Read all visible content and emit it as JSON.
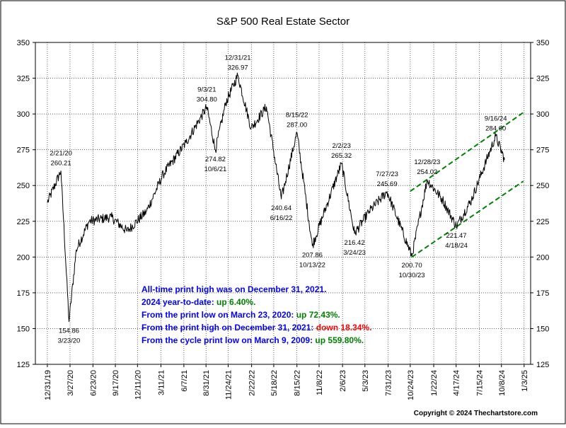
{
  "chart_data": {
    "type": "line",
    "title": "S&P 500 Real Estate Sector",
    "ylim": [
      125,
      350
    ],
    "y_ticks": [
      "350",
      "325",
      "300",
      "275",
      "250",
      "225",
      "200",
      "175",
      "150",
      "125"
    ],
    "x_ticks": [
      "12/31/19",
      "3/27/20",
      "6/23/20",
      "9/17/20",
      "12/11/20",
      "3/11/21",
      "6/7/21",
      "8/31/21",
      "11/24/21",
      "2/22/22",
      "5/18/22",
      "8/15/22",
      "11/8/22",
      "2/6/23",
      "5/3/23",
      "7/31/23",
      "10/24/23",
      "1/22/24",
      "4/17/24",
      "7/15/24",
      "10/8/24",
      "1/3/25"
    ],
    "series": [
      {
        "x": [
          "2019-12-31",
          "2020-02-21",
          "2020-03-23",
          "2020-04-20",
          "2020-06-08",
          "2020-09-01",
          "2020-11-01",
          "2021-01-15",
          "2021-03-20",
          "2021-06-15",
          "2021-09-03",
          "2021-10-06",
          "2021-11-15",
          "2021-12-31",
          "2022-02-20",
          "2022-04-20",
          "2022-06-16",
          "2022-08-15",
          "2022-10-13",
          "2023-02-02",
          "2023-03-24",
          "2023-05-20",
          "2023-07-27",
          "2023-10-30",
          "2023-12-28",
          "2024-02-25",
          "2024-04-18",
          "2024-06-15",
          "2024-09-16",
          "2024-10-20"
        ],
        "values": [
          238,
          260.21,
          154.86,
          205,
          225,
          228,
          218,
          232,
          258,
          280,
          304.8,
          274.82,
          308,
          326.97,
          290,
          305,
          240.64,
          287.0,
          207.86,
          265.32,
          216.42,
          232,
          245.69,
          200.7,
          254.02,
          240,
          221.47,
          240,
          284.6,
          268
        ]
      }
    ],
    "trend_channel": {
      "upper": {
        "x": [
          "2023-10-24",
          "2024-12-31"
        ],
        "y": [
          246,
          301
        ]
      },
      "lower": {
        "x": [
          "2023-10-30",
          "2024-12-31"
        ],
        "y": [
          200,
          253
        ]
      }
    },
    "annotations": [
      {
        "date": "2/21/20",
        "value": "260.21",
        "x": "2020-02-21",
        "y": 260.21,
        "pos": "above"
      },
      {
        "date": "3/23/20",
        "value": "154.86",
        "x": "2020-03-23",
        "y": 154.86,
        "pos": "below"
      },
      {
        "date": "9/3/21",
        "value": "304.80",
        "x": "2021-09-03",
        "y": 304.8,
        "pos": "above"
      },
      {
        "date": "10/6/21",
        "value": "274.82",
        "x": "2021-10-06",
        "y": 274.82,
        "pos": "below"
      },
      {
        "date": "12/31/21",
        "value": "326.97",
        "x": "2021-12-31",
        "y": 326.97,
        "pos": "above"
      },
      {
        "date": "6/16/22",
        "value": "240.64",
        "x": "2022-06-16",
        "y": 240.64,
        "pos": "below"
      },
      {
        "date": "8/15/22",
        "value": "287.00",
        "x": "2022-08-15",
        "y": 287.0,
        "pos": "above"
      },
      {
        "date": "10/13/22",
        "value": "207.86",
        "x": "2022-10-13",
        "y": 207.86,
        "pos": "below"
      },
      {
        "date": "2/2/23",
        "value": "265.32",
        "x": "2023-02-02",
        "y": 265.32,
        "pos": "above"
      },
      {
        "date": "3/24/23",
        "value": "216.42",
        "x": "2023-03-24",
        "y": 216.42,
        "pos": "below"
      },
      {
        "date": "7/27/23",
        "value": "245.69",
        "x": "2023-07-27",
        "y": 245.69,
        "pos": "above"
      },
      {
        "date": "10/30/23",
        "value": "200.70",
        "x": "2023-10-30",
        "y": 200.7,
        "pos": "below"
      },
      {
        "date": "12/28/23",
        "value": "254.02",
        "x": "2023-12-28",
        "y": 254.02,
        "pos": "above"
      },
      {
        "date": "4/18/24",
        "value": "221.47",
        "x": "2024-04-18",
        "y": 221.47,
        "pos": "below"
      },
      {
        "date": "9/16/24",
        "value": "284.60",
        "x": "2024-09-16",
        "y": 284.6,
        "pos": "above"
      }
    ],
    "stats": [
      {
        "text": "All-time print high was on December 31, 2021.",
        "highlight": "",
        "highlight_color": ""
      },
      {
        "text": "2024 year-to-date: ",
        "highlight": "up 6.40%.",
        "highlight_color": "#008000"
      },
      {
        "text": "From the print low on March 23, 2020:  ",
        "highlight": "up 72.43%.",
        "highlight_color": "#008000"
      },
      {
        "text": "From the print high on December 31, 2021:  ",
        "highlight": "down 18.34%.",
        "highlight_color": "#ff0000"
      },
      {
        "text": "From the cycle print low on March 9, 2009:  ",
        "highlight": "up 559.80%.",
        "highlight_color": "#008000"
      }
    ],
    "copyright": "Copyright © 2024 Thechartstore.com",
    "colors": {
      "line": "#000000",
      "trend": "#008000",
      "grid": "#000000",
      "stat_text": "#0000ff"
    },
    "grid": true,
    "grid_style": "dotted"
  }
}
